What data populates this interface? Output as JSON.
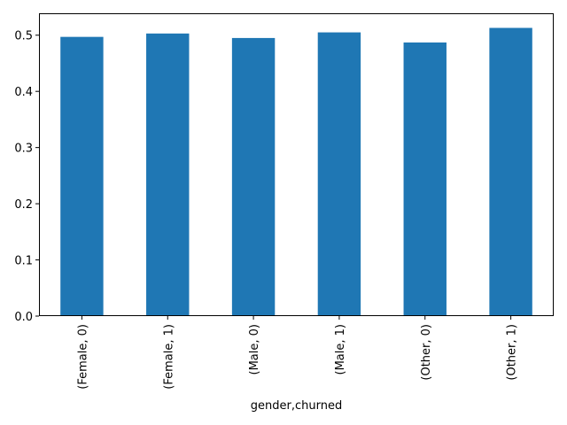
{
  "chart_data": {
    "type": "bar",
    "title": "",
    "xlabel": "gender,churned",
    "ylabel": "",
    "categories": [
      "(Female, 0)",
      "(Female, 1)",
      "(Male, 0)",
      "(Male, 1)",
      "(Other, 0)",
      "(Other, 1)"
    ],
    "values": [
      0.497,
      0.503,
      0.495,
      0.505,
      0.487,
      0.513
    ],
    "ylim": [
      0,
      0.539
    ],
    "yticks": [
      0.0,
      0.1,
      0.2,
      0.3,
      0.4,
      0.5
    ],
    "ytick_labels": [
      "0.0",
      "0.1",
      "0.2",
      "0.3",
      "0.4",
      "0.5"
    ],
    "bar_color": "#1f77b4",
    "grid": false,
    "legend": "none"
  }
}
